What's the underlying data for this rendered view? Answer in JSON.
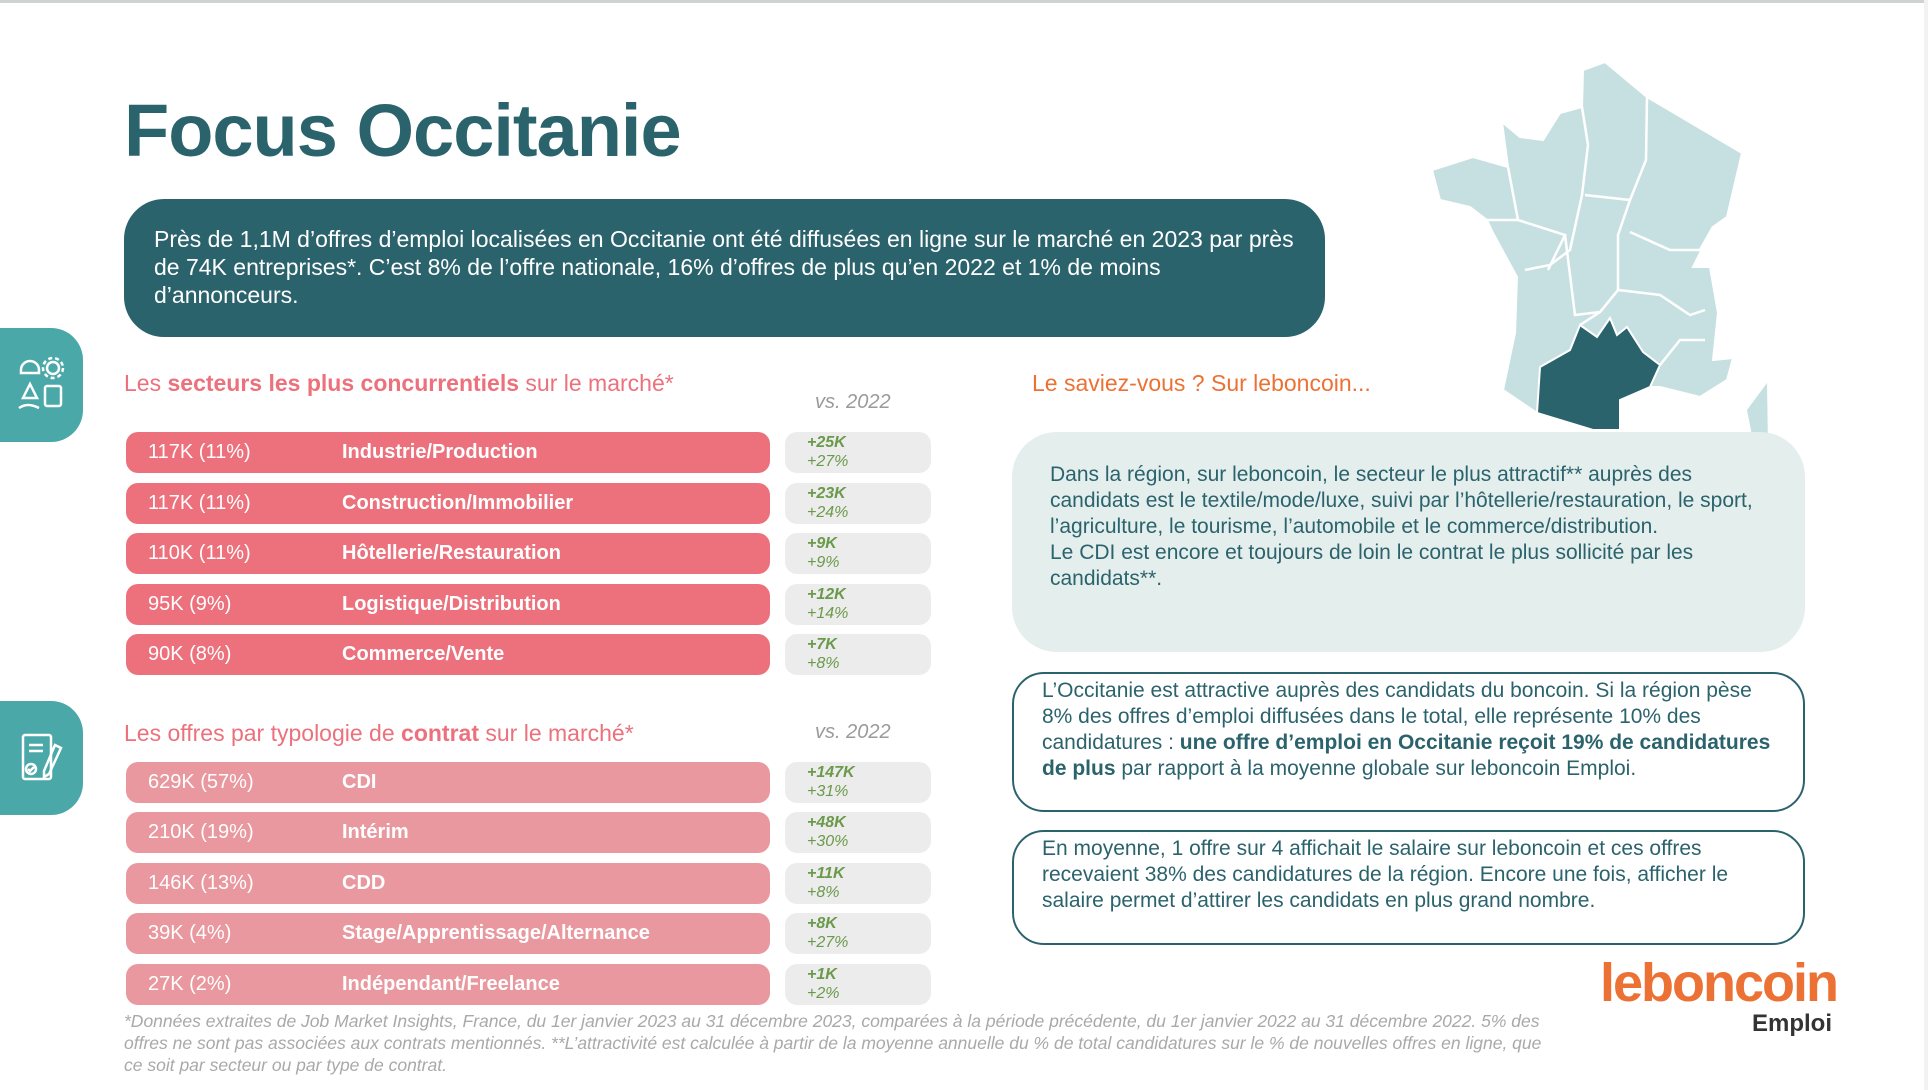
{
  "title": "Focus Occitanie",
  "intro": "Près de 1,1M d’offres d’emploi localisées en Occitanie ont été diffusées en ligne sur le marché en 2023 par près de 74K entreprises*. C’est 8% de l’offre nationale, 16% d’offres de plus qu’en 2022 et 1% de moins d’annonceurs.",
  "sectors": {
    "heading": {
      "pre": "Les ",
      "bold": "secteurs les plus concurrentiels",
      "post": " sur le marché*"
    },
    "vs_label": "vs. 2022",
    "rows": [
      {
        "value": "117K (11%)",
        "label": "Industrie/Production",
        "delta_k": "+25K",
        "delta_pct": "+27%"
      },
      {
        "value": "117K (11%)",
        "label": "Construction/Immobilier",
        "delta_k": "+23K",
        "delta_pct": "+24%"
      },
      {
        "value": "110K (11%)",
        "label": "Hôtellerie/Restauration",
        "delta_k": "+9K",
        "delta_pct": "+9%"
      },
      {
        "value": "95K (9%)",
        "label": "Logistique/Distribution",
        "delta_k": "+12K",
        "delta_pct": "+14%"
      },
      {
        "value": "90K (8%)",
        "label": "Commerce/Vente",
        "delta_k": "+7K",
        "delta_pct": "+8%"
      }
    ]
  },
  "contracts": {
    "heading": {
      "pre": "Les offres par typologie de ",
      "bold": "contrat",
      "post": " sur le marché*"
    },
    "vs_label": "vs. 2022",
    "rows": [
      {
        "value": "629K (57%)",
        "label": "CDI",
        "delta_k": "+147K",
        "delta_pct": "+31%"
      },
      {
        "value": "210K (19%)",
        "label": "Intérim",
        "delta_k": "+48K",
        "delta_pct": "+30%"
      },
      {
        "value": "146K (13%)",
        "label": "CDD",
        "delta_k": "+11K",
        "delta_pct": "+8%"
      },
      {
        "value": "39K (4%)",
        "label": "Stage/Apprentissage/Alternance",
        "delta_k": "+8K",
        "delta_pct": "+27%"
      },
      {
        "value": "27K (2%)",
        "label": "Indépendant/Freelance",
        "delta_k": "+1K",
        "delta_pct": "+2%"
      }
    ]
  },
  "footnote": "*Données extraites de Job Market Insights, France, du 1er janvier 2023 au 31 décembre 2023, comparées à la période précédente, du 1er janvier 2022 au 31 décembre 2022. 5% des offres ne sont pas associées aux contrats mentionnés. **L’attractivité est calculée à partir de la moyenne annuelle du % de total candidatures sur le % de nouvelles offres en ligne, que ce soit par secteur ou par type de contrat.",
  "saviez": {
    "heading": "Le saviez-vous ? Sur leboncoin...",
    "para1": "Dans la région, sur leboncoin, le secteur le plus attractif** auprès des candidats est le textile/mode/luxe, suivi par l’hôtellerie/restauration, le sport, l’agriculture, le tourisme, l’automobile et le commerce/distribution.",
    "para2": "Le CDI est encore et toujours de loin le contrat le plus sollicité par les candidats**."
  },
  "box_attractive": {
    "pre": "L’Occitanie est attractive auprès des candidats du boncoin. Si la région pèse 8% des offres d’emploi diffusées dans le total, elle représente 10% des candidatures : ",
    "bold": "une offre d’emploi en Occitanie reçoit 19% de candidatures de plus",
    "post": " par rapport à la moyenne globale sur leboncoin Emploi."
  },
  "box_salary": "En moyenne, 1 offre sur 4 affichait le salaire sur leboncoin et ces offres recevaient 38% des candidatures de la région. Encore une fois, afficher le salaire permet d’attirer les candidats en plus grand nombre.",
  "logo": {
    "brand": "leboncoin",
    "sub": "Emploi"
  },
  "map": {
    "highlighted_region": "Occitanie"
  },
  "colors": {
    "teal": "#2b636d",
    "sector_bar": "#ec717c",
    "contract_bar": "#e8989e",
    "green": "#6a9a4a",
    "orange": "#ec7134",
    "map_light": "#c6e0e2"
  }
}
